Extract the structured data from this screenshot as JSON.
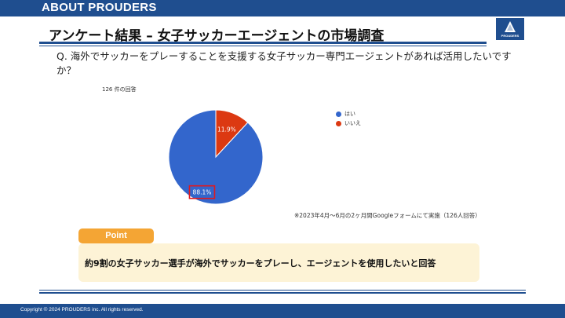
{
  "header": {
    "section": "ABOUT PROUDERS",
    "title": "アンケート結果 – 女子サッカーエージェントの市場調査",
    "logo_text": "PROUDERS"
  },
  "question": "Q. 海外でサッカーをプレーすることを支援する女子サッカー専門エージェントがあれば活用したいですか？",
  "response_count": "126 件の回答",
  "chart_data": {
    "type": "pie",
    "categories": [
      "はい",
      "いいえ"
    ],
    "values": [
      88.1,
      11.9
    ],
    "colors": [
      "#3366cc",
      "#dc3912"
    ],
    "legend": "right",
    "labels": [
      "88.1%",
      "11.9%"
    ],
    "highlighted": "88.1%"
  },
  "note": "※2023年4月～6月の2ヶ月間Googleフォームにて実施（126人回答）",
  "point": {
    "label": "Point",
    "text": "約9割の女子サッカー選手が海外でサッカーをプレーし、エージェントを使用したいと回答"
  },
  "footer": {
    "copyright": "Copyright © 2024 PROUDERS inc.  All rights reserved."
  },
  "colors": {
    "brand": "#1f4e8f",
    "accent": "#f4a534",
    "point_bg": "#fdf3d6"
  }
}
